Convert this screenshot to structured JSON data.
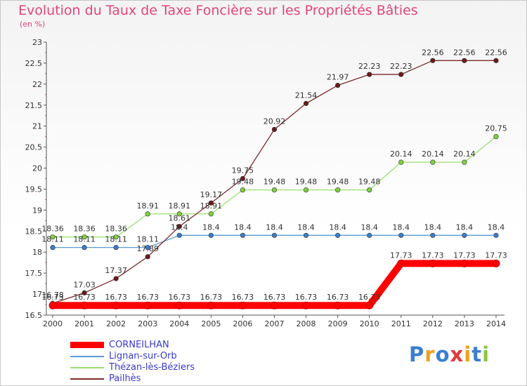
{
  "page": {
    "title": "Evolution du Taux de Taxe Foncière sur les Propriétés Bâties",
    "subtitle": "(en %)"
  },
  "logo": {
    "text": "Proxiti",
    "letters": [
      {
        "ch": "P",
        "color": "#3a7fd0"
      },
      {
        "ch": "r",
        "color": "#f0a020"
      },
      {
        "ch": "o",
        "color": "#3a7fd0"
      },
      {
        "ch": "x",
        "color": "#e23a3a"
      },
      {
        "ch": "i",
        "color": "#f0a020"
      },
      {
        "ch": "t",
        "color": "#3a7fd0"
      },
      {
        "ch": "i",
        "color": "#8cc63f"
      }
    ]
  },
  "chart_data": {
    "type": "line",
    "title": "Evolution du Taux de Taxe Foncière sur les Propriétés Bâties",
    "ylabel": "(en %)",
    "xlabel": "",
    "ylim": [
      16.5,
      23
    ],
    "yticks": [
      "16.5",
      "17",
      "17.5",
      "18",
      "18.5",
      "19",
      "19.5",
      "20",
      "20.5",
      "21",
      "21.5",
      "22",
      "22.5",
      "23"
    ],
    "categories": [
      "2000",
      "2001",
      "2002",
      "2003",
      "2004",
      "2005",
      "2006",
      "2007",
      "2008",
      "2009",
      "2010",
      "2011",
      "2012",
      "2013",
      "2014"
    ],
    "grid": false,
    "legend_position": "bottom-left",
    "series": [
      {
        "name": "CORNEILHAN",
        "color": "#ff0000",
        "point_color": "#ff0000",
        "emphasis": true,
        "values": [
          16.73,
          16.73,
          16.73,
          16.73,
          16.73,
          16.73,
          16.73,
          16.73,
          16.73,
          16.73,
          16.73,
          17.73,
          17.73,
          17.73,
          17.73
        ],
        "labels": [
          "16.73",
          "16.73",
          "16.73",
          "16.73",
          "16.73",
          "16.73",
          "16.73",
          "16.73",
          "16.73",
          "16.73",
          "16.73",
          "17.73",
          "17.73",
          "17.73",
          "17.73"
        ]
      },
      {
        "name": "Lignan-sur-Orb",
        "color": "#5b9bd5",
        "point_color": "#3d7cc9",
        "emphasis": false,
        "values": [
          18.11,
          18.11,
          18.11,
          18.11,
          18.4,
          18.4,
          18.4,
          18.4,
          18.4,
          18.4,
          18.4,
          18.4,
          18.4,
          18.4,
          18.4
        ],
        "labels": [
          "18.11",
          "18.11",
          "18.11",
          "18.11",
          "18.4",
          "18.4",
          "18.4",
          "18.4",
          "18.4",
          "18.4",
          "18.4",
          "18.4",
          "18.4",
          "18.4",
          "18.4"
        ]
      },
      {
        "name": "Thézan-lès-Béziers",
        "color": "#99e06f",
        "point_color": "#7fd040",
        "emphasis": false,
        "values": [
          18.36,
          18.36,
          18.36,
          18.91,
          18.91,
          18.91,
          19.48,
          19.48,
          19.48,
          19.48,
          19.48,
          20.14,
          20.14,
          20.14,
          20.75
        ],
        "labels": [
          "18.36",
          "18.36",
          "18.36",
          "18.91",
          "18.91",
          "18.91",
          "19.48",
          "19.48",
          "19.48",
          "19.48",
          "19.48",
          "20.14",
          "20.14",
          "20.14",
          "20.75"
        ]
      },
      {
        "name": "Pailhès",
        "color": "#7a2a2a",
        "point_color": "#6a1a1a",
        "emphasis": false,
        "values": [
          16.78,
          17.03,
          17.37,
          17.89,
          18.61,
          19.17,
          19.75,
          20.92,
          21.54,
          21.97,
          22.23,
          22.23,
          22.56,
          22.56,
          22.56
        ],
        "labels": [
          "16.78",
          "17.03",
          "17.37",
          "17.89",
          "18.61",
          "19.17",
          "19.75",
          "20.92",
          "21.54",
          "21.97",
          "22.23",
          "22.23",
          "22.56",
          "22.56",
          "22.56"
        ]
      }
    ]
  }
}
